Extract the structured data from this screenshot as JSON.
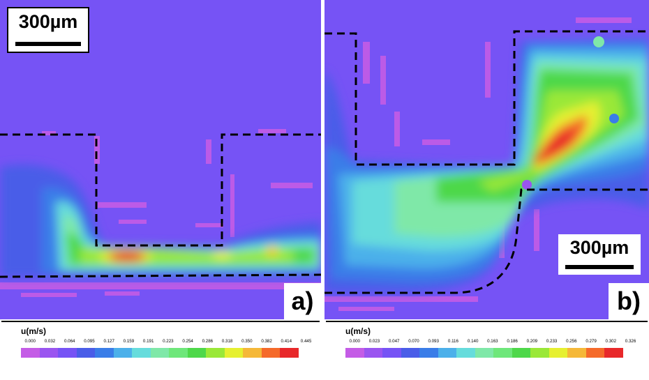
{
  "panel_a": {
    "label": "a)",
    "scale_bar": "300µm"
  },
  "panel_b": {
    "label": "b)",
    "scale_bar": "300µm"
  },
  "legend_a": {
    "title": "u(m/s)",
    "ticks": [
      "0.000",
      "0.032",
      "0.064",
      "0.095",
      "0.127",
      "0.159",
      "0.191",
      "0.223",
      "0.254",
      "0.286",
      "0.318",
      "0.350",
      "0.382",
      "0.414",
      "0.445"
    ]
  },
  "legend_b": {
    "title": "u(m/s)",
    "ticks": [
      "0.000",
      "0.023",
      "0.047",
      "0.070",
      "0.093",
      "0.116",
      "0.140",
      "0.163",
      "0.186",
      "0.209",
      "0.233",
      "0.256",
      "0.279",
      "0.302",
      "0.326"
    ]
  },
  "colormap": [
    "#c45ce6",
    "#9a55f0",
    "#7653f5",
    "#4a5de8",
    "#3a7de8",
    "#4cb0ea",
    "#66dcdc",
    "#7fe8a8",
    "#6ee77a",
    "#4ed84a",
    "#9ae838",
    "#e6f030",
    "#f5b838",
    "#f56a2a",
    "#e8282a"
  ]
}
